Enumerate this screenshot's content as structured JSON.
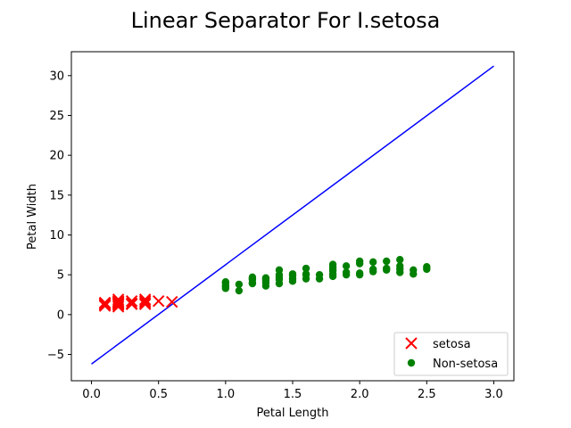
{
  "chart_data": {
    "type": "scatter",
    "title": "Linear Separator For I.setosa",
    "xlabel": "Petal Length",
    "ylabel": "Petal Width",
    "xlim": [
      -0.15,
      3.15
    ],
    "ylim": [
      -8.3,
      33.0
    ],
    "xticks": [
      "0.0",
      "0.5",
      "1.0",
      "1.5",
      "2.0",
      "2.5",
      "3.0"
    ],
    "yticks": [
      "−5",
      "0",
      "5",
      "10",
      "15",
      "20",
      "25",
      "30"
    ],
    "xtick_values": [
      0.0,
      0.5,
      1.0,
      1.5,
      2.0,
      2.5,
      3.0
    ],
    "ytick_values": [
      -5,
      0,
      5,
      10,
      15,
      20,
      25,
      30
    ],
    "legend_position": "lower-right",
    "grid": false,
    "series": [
      {
        "name": "setosa",
        "marker": "x",
        "color": "#ff0000",
        "points": [
          [
            0.1,
            1.4
          ],
          [
            0.1,
            1.5
          ],
          [
            0.1,
            1.1
          ],
          [
            0.1,
            1.2
          ],
          [
            0.1,
            1.3
          ],
          [
            0.2,
            1.4
          ],
          [
            0.2,
            1.3
          ],
          [
            0.2,
            1.5
          ],
          [
            0.2,
            1.7
          ],
          [
            0.2,
            1.2
          ],
          [
            0.2,
            1.6
          ],
          [
            0.2,
            1.9
          ],
          [
            0.2,
            1.0
          ],
          [
            0.3,
            1.4
          ],
          [
            0.3,
            1.3
          ],
          [
            0.3,
            1.7
          ],
          [
            0.4,
            1.5
          ],
          [
            0.4,
            1.3
          ],
          [
            0.4,
            1.7
          ],
          [
            0.4,
            1.9
          ],
          [
            0.5,
            1.7
          ],
          [
            0.6,
            1.6
          ]
        ]
      },
      {
        "name": "Non-setosa",
        "marker": "o",
        "color": "#008000",
        "points": [
          [
            1.0,
            3.3
          ],
          [
            1.0,
            3.5
          ],
          [
            1.0,
            3.7
          ],
          [
            1.0,
            4.0
          ],
          [
            1.0,
            4.1
          ],
          [
            1.1,
            3.0
          ],
          [
            1.1,
            3.8
          ],
          [
            1.2,
            3.9
          ],
          [
            1.2,
            4.0
          ],
          [
            1.2,
            4.4
          ],
          [
            1.2,
            4.7
          ],
          [
            1.2,
            4.5
          ],
          [
            1.3,
            3.6
          ],
          [
            1.3,
            4.0
          ],
          [
            1.3,
            4.3
          ],
          [
            1.3,
            4.5
          ],
          [
            1.3,
            4.6
          ],
          [
            1.4,
            3.9
          ],
          [
            1.4,
            4.4
          ],
          [
            1.4,
            4.7
          ],
          [
            1.4,
            5.0
          ],
          [
            1.4,
            5.6
          ],
          [
            1.5,
            4.2
          ],
          [
            1.5,
            4.5
          ],
          [
            1.5,
            4.9
          ],
          [
            1.5,
            5.1
          ],
          [
            1.6,
            4.5
          ],
          [
            1.6,
            5.0
          ],
          [
            1.6,
            5.1
          ],
          [
            1.6,
            5.8
          ],
          [
            1.7,
            4.5
          ],
          [
            1.7,
            5.0
          ],
          [
            1.8,
            4.8
          ],
          [
            1.8,
            5.1
          ],
          [
            1.8,
            5.5
          ],
          [
            1.8,
            5.7
          ],
          [
            1.8,
            6.0
          ],
          [
            1.8,
            6.3
          ],
          [
            1.9,
            5.0
          ],
          [
            1.9,
            5.3
          ],
          [
            1.9,
            6.1
          ],
          [
            2.0,
            5.0
          ],
          [
            2.0,
            5.2
          ],
          [
            2.0,
            6.4
          ],
          [
            2.0,
            6.7
          ],
          [
            2.1,
            5.4
          ],
          [
            2.1,
            5.7
          ],
          [
            2.1,
            6.6
          ],
          [
            2.2,
            5.6
          ],
          [
            2.2,
            5.8
          ],
          [
            2.2,
            6.7
          ],
          [
            2.3,
            5.3
          ],
          [
            2.3,
            5.7
          ],
          [
            2.3,
            6.1
          ],
          [
            2.3,
            6.9
          ],
          [
            2.4,
            5.1
          ],
          [
            2.4,
            5.6
          ],
          [
            2.5,
            5.7
          ],
          [
            2.5,
            6.0
          ]
        ]
      }
    ],
    "separator_line": {
      "color": "#0000ff",
      "x": [
        0.0,
        3.0
      ],
      "y": [
        -6.2,
        31.2
      ]
    }
  }
}
